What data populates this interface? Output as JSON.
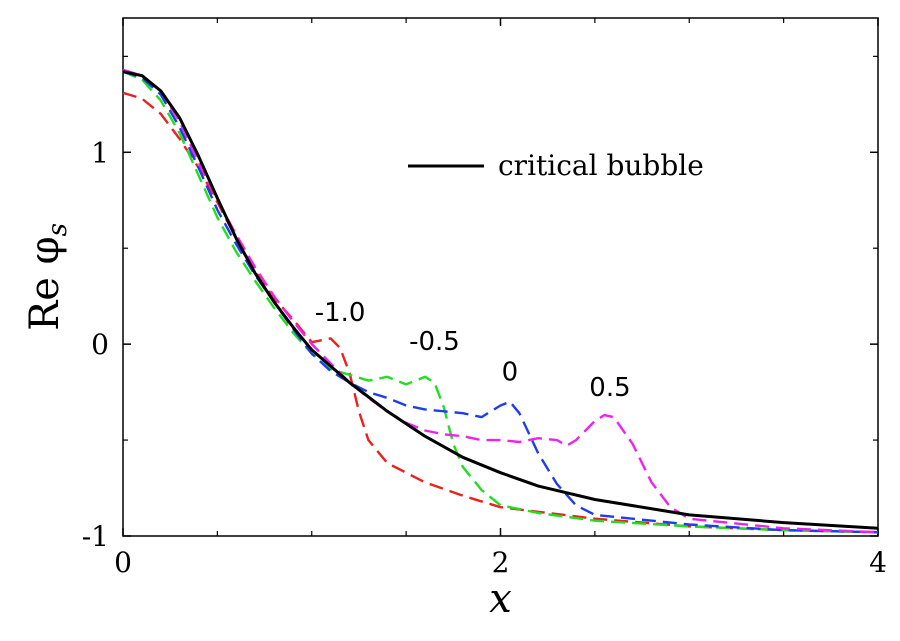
{
  "chart_data": {
    "type": "line",
    "xlabel": "x",
    "ylabel": "Re φ",
    "ylabel_sub": "s",
    "xlim": [
      0,
      4
    ],
    "ylim": [
      -1,
      1.7
    ],
    "xticks": [
      0,
      2,
      4
    ],
    "xtick_labels": [
      "0",
      "2",
      "4"
    ],
    "yticks": [
      -1,
      0,
      1
    ],
    "ytick_labels": [
      "-1",
      "0",
      "1"
    ],
    "grid": false,
    "legend": {
      "position": "top-right",
      "entries": [
        {
          "name": "critical bubble",
          "color": "#000000",
          "style": "solid"
        }
      ]
    },
    "series": [
      {
        "name": "critical bubble",
        "color": "#000000",
        "style": "solid",
        "points": [
          [
            0,
            1.42
          ],
          [
            0.1,
            1.4
          ],
          [
            0.2,
            1.32
          ],
          [
            0.3,
            1.18
          ],
          [
            0.4,
            0.98
          ],
          [
            0.5,
            0.76
          ],
          [
            0.6,
            0.55
          ],
          [
            0.7,
            0.37
          ],
          [
            0.8,
            0.22
          ],
          [
            0.9,
            0.09
          ],
          [
            1.0,
            -0.03
          ],
          [
            1.2,
            -0.2
          ],
          [
            1.4,
            -0.35
          ],
          [
            1.6,
            -0.48
          ],
          [
            1.8,
            -0.59
          ],
          [
            2.0,
            -0.67
          ],
          [
            2.2,
            -0.74
          ],
          [
            2.5,
            -0.81
          ],
          [
            3.0,
            -0.89
          ],
          [
            3.5,
            -0.93
          ],
          [
            4.0,
            -0.96
          ]
        ]
      },
      {
        "name": "-1.0",
        "color": "#e8221e",
        "style": "dashed",
        "points": [
          [
            0,
            1.31
          ],
          [
            0.1,
            1.28
          ],
          [
            0.2,
            1.2
          ],
          [
            0.3,
            1.07
          ],
          [
            0.4,
            0.92
          ],
          [
            0.5,
            0.74
          ],
          [
            0.6,
            0.55
          ],
          [
            0.7,
            0.38
          ],
          [
            0.8,
            0.24
          ],
          [
            0.9,
            0.13
          ],
          [
            0.95,
            0.07
          ],
          [
            1.0,
            0.01
          ],
          [
            1.05,
            0.02
          ],
          [
            1.1,
            0.03
          ],
          [
            1.15,
            -0.02
          ],
          [
            1.2,
            -0.15
          ],
          [
            1.25,
            -0.35
          ],
          [
            1.3,
            -0.5
          ],
          [
            1.4,
            -0.62
          ],
          [
            1.6,
            -0.72
          ],
          [
            1.8,
            -0.79
          ],
          [
            2.0,
            -0.85
          ],
          [
            2.5,
            -0.91
          ],
          [
            3.0,
            -0.95
          ],
          [
            3.5,
            -0.97
          ],
          [
            4.0,
            -0.98
          ]
        ]
      },
      {
        "name": "-0.5",
        "color": "#22dd22",
        "style": "dashed",
        "points": [
          [
            0,
            1.42
          ],
          [
            0.1,
            1.38
          ],
          [
            0.2,
            1.27
          ],
          [
            0.3,
            1.1
          ],
          [
            0.4,
            0.88
          ],
          [
            0.5,
            0.66
          ],
          [
            0.6,
            0.48
          ],
          [
            0.7,
            0.33
          ],
          [
            0.8,
            0.19
          ],
          [
            0.9,
            0.06
          ],
          [
            1.0,
            -0.05
          ],
          [
            1.1,
            -0.13
          ],
          [
            1.2,
            -0.16
          ],
          [
            1.3,
            -0.19
          ],
          [
            1.4,
            -0.17
          ],
          [
            1.5,
            -0.21
          ],
          [
            1.6,
            -0.17
          ],
          [
            1.65,
            -0.2
          ],
          [
            1.7,
            -0.33
          ],
          [
            1.75,
            -0.52
          ],
          [
            1.8,
            -0.64
          ],
          [
            1.9,
            -0.76
          ],
          [
            2.0,
            -0.84
          ],
          [
            2.2,
            -0.88
          ],
          [
            2.5,
            -0.92
          ],
          [
            3.0,
            -0.95
          ],
          [
            3.5,
            -0.97
          ],
          [
            4.0,
            -0.98
          ]
        ]
      },
      {
        "name": "0",
        "color": "#1e3ee8",
        "style": "dashed",
        "points": [
          [
            0,
            1.42
          ],
          [
            0.1,
            1.39
          ],
          [
            0.2,
            1.3
          ],
          [
            0.3,
            1.13
          ],
          [
            0.4,
            0.92
          ],
          [
            0.5,
            0.7
          ],
          [
            0.6,
            0.52
          ],
          [
            0.7,
            0.36
          ],
          [
            0.8,
            0.22
          ],
          [
            0.9,
            0.08
          ],
          [
            1.0,
            -0.05
          ],
          [
            1.1,
            -0.14
          ],
          [
            1.2,
            -0.2
          ],
          [
            1.3,
            -0.25
          ],
          [
            1.4,
            -0.28
          ],
          [
            1.5,
            -0.32
          ],
          [
            1.6,
            -0.34
          ],
          [
            1.7,
            -0.35
          ],
          [
            1.8,
            -0.36
          ],
          [
            1.9,
            -0.38
          ],
          [
            2.0,
            -0.32
          ],
          [
            2.05,
            -0.3
          ],
          [
            2.1,
            -0.36
          ],
          [
            2.2,
            -0.57
          ],
          [
            2.3,
            -0.73
          ],
          [
            2.4,
            -0.84
          ],
          [
            2.5,
            -0.89
          ],
          [
            3.0,
            -0.94
          ],
          [
            3.5,
            -0.97
          ],
          [
            4.0,
            -0.98
          ]
        ]
      },
      {
        "name": "0.5",
        "color": "#ee22ee",
        "style": "dashed",
        "points": [
          [
            0,
            1.43
          ],
          [
            0.1,
            1.4
          ],
          [
            0.2,
            1.32
          ],
          [
            0.3,
            1.16
          ],
          [
            0.4,
            0.95
          ],
          [
            0.5,
            0.75
          ],
          [
            0.6,
            0.57
          ],
          [
            0.7,
            0.4
          ],
          [
            0.8,
            0.25
          ],
          [
            0.9,
            0.12
          ],
          [
            1.0,
            0.0
          ],
          [
            1.1,
            -0.1
          ],
          [
            1.2,
            -0.2
          ],
          [
            1.3,
            -0.28
          ],
          [
            1.4,
            -0.35
          ],
          [
            1.5,
            -0.41
          ],
          [
            1.6,
            -0.45
          ],
          [
            1.7,
            -0.47
          ],
          [
            1.8,
            -0.48
          ],
          [
            1.9,
            -0.5
          ],
          [
            2.0,
            -0.5
          ],
          [
            2.1,
            -0.51
          ],
          [
            2.2,
            -0.49
          ],
          [
            2.3,
            -0.5
          ],
          [
            2.35,
            -0.53
          ],
          [
            2.4,
            -0.5
          ],
          [
            2.5,
            -0.4
          ],
          [
            2.55,
            -0.37
          ],
          [
            2.6,
            -0.38
          ],
          [
            2.7,
            -0.52
          ],
          [
            2.8,
            -0.72
          ],
          [
            2.9,
            -0.85
          ],
          [
            3.0,
            -0.91
          ],
          [
            3.5,
            -0.96
          ],
          [
            4.0,
            -0.98
          ]
        ]
      }
    ],
    "annotations": [
      {
        "text": "-1.0",
        "x": 1.15,
        "y": 0.12
      },
      {
        "text": "-0.5",
        "x": 1.65,
        "y": -0.03
      },
      {
        "text": "0",
        "x": 2.05,
        "y": -0.19
      },
      {
        "text": "0.5",
        "x": 2.58,
        "y": -0.27
      }
    ]
  }
}
